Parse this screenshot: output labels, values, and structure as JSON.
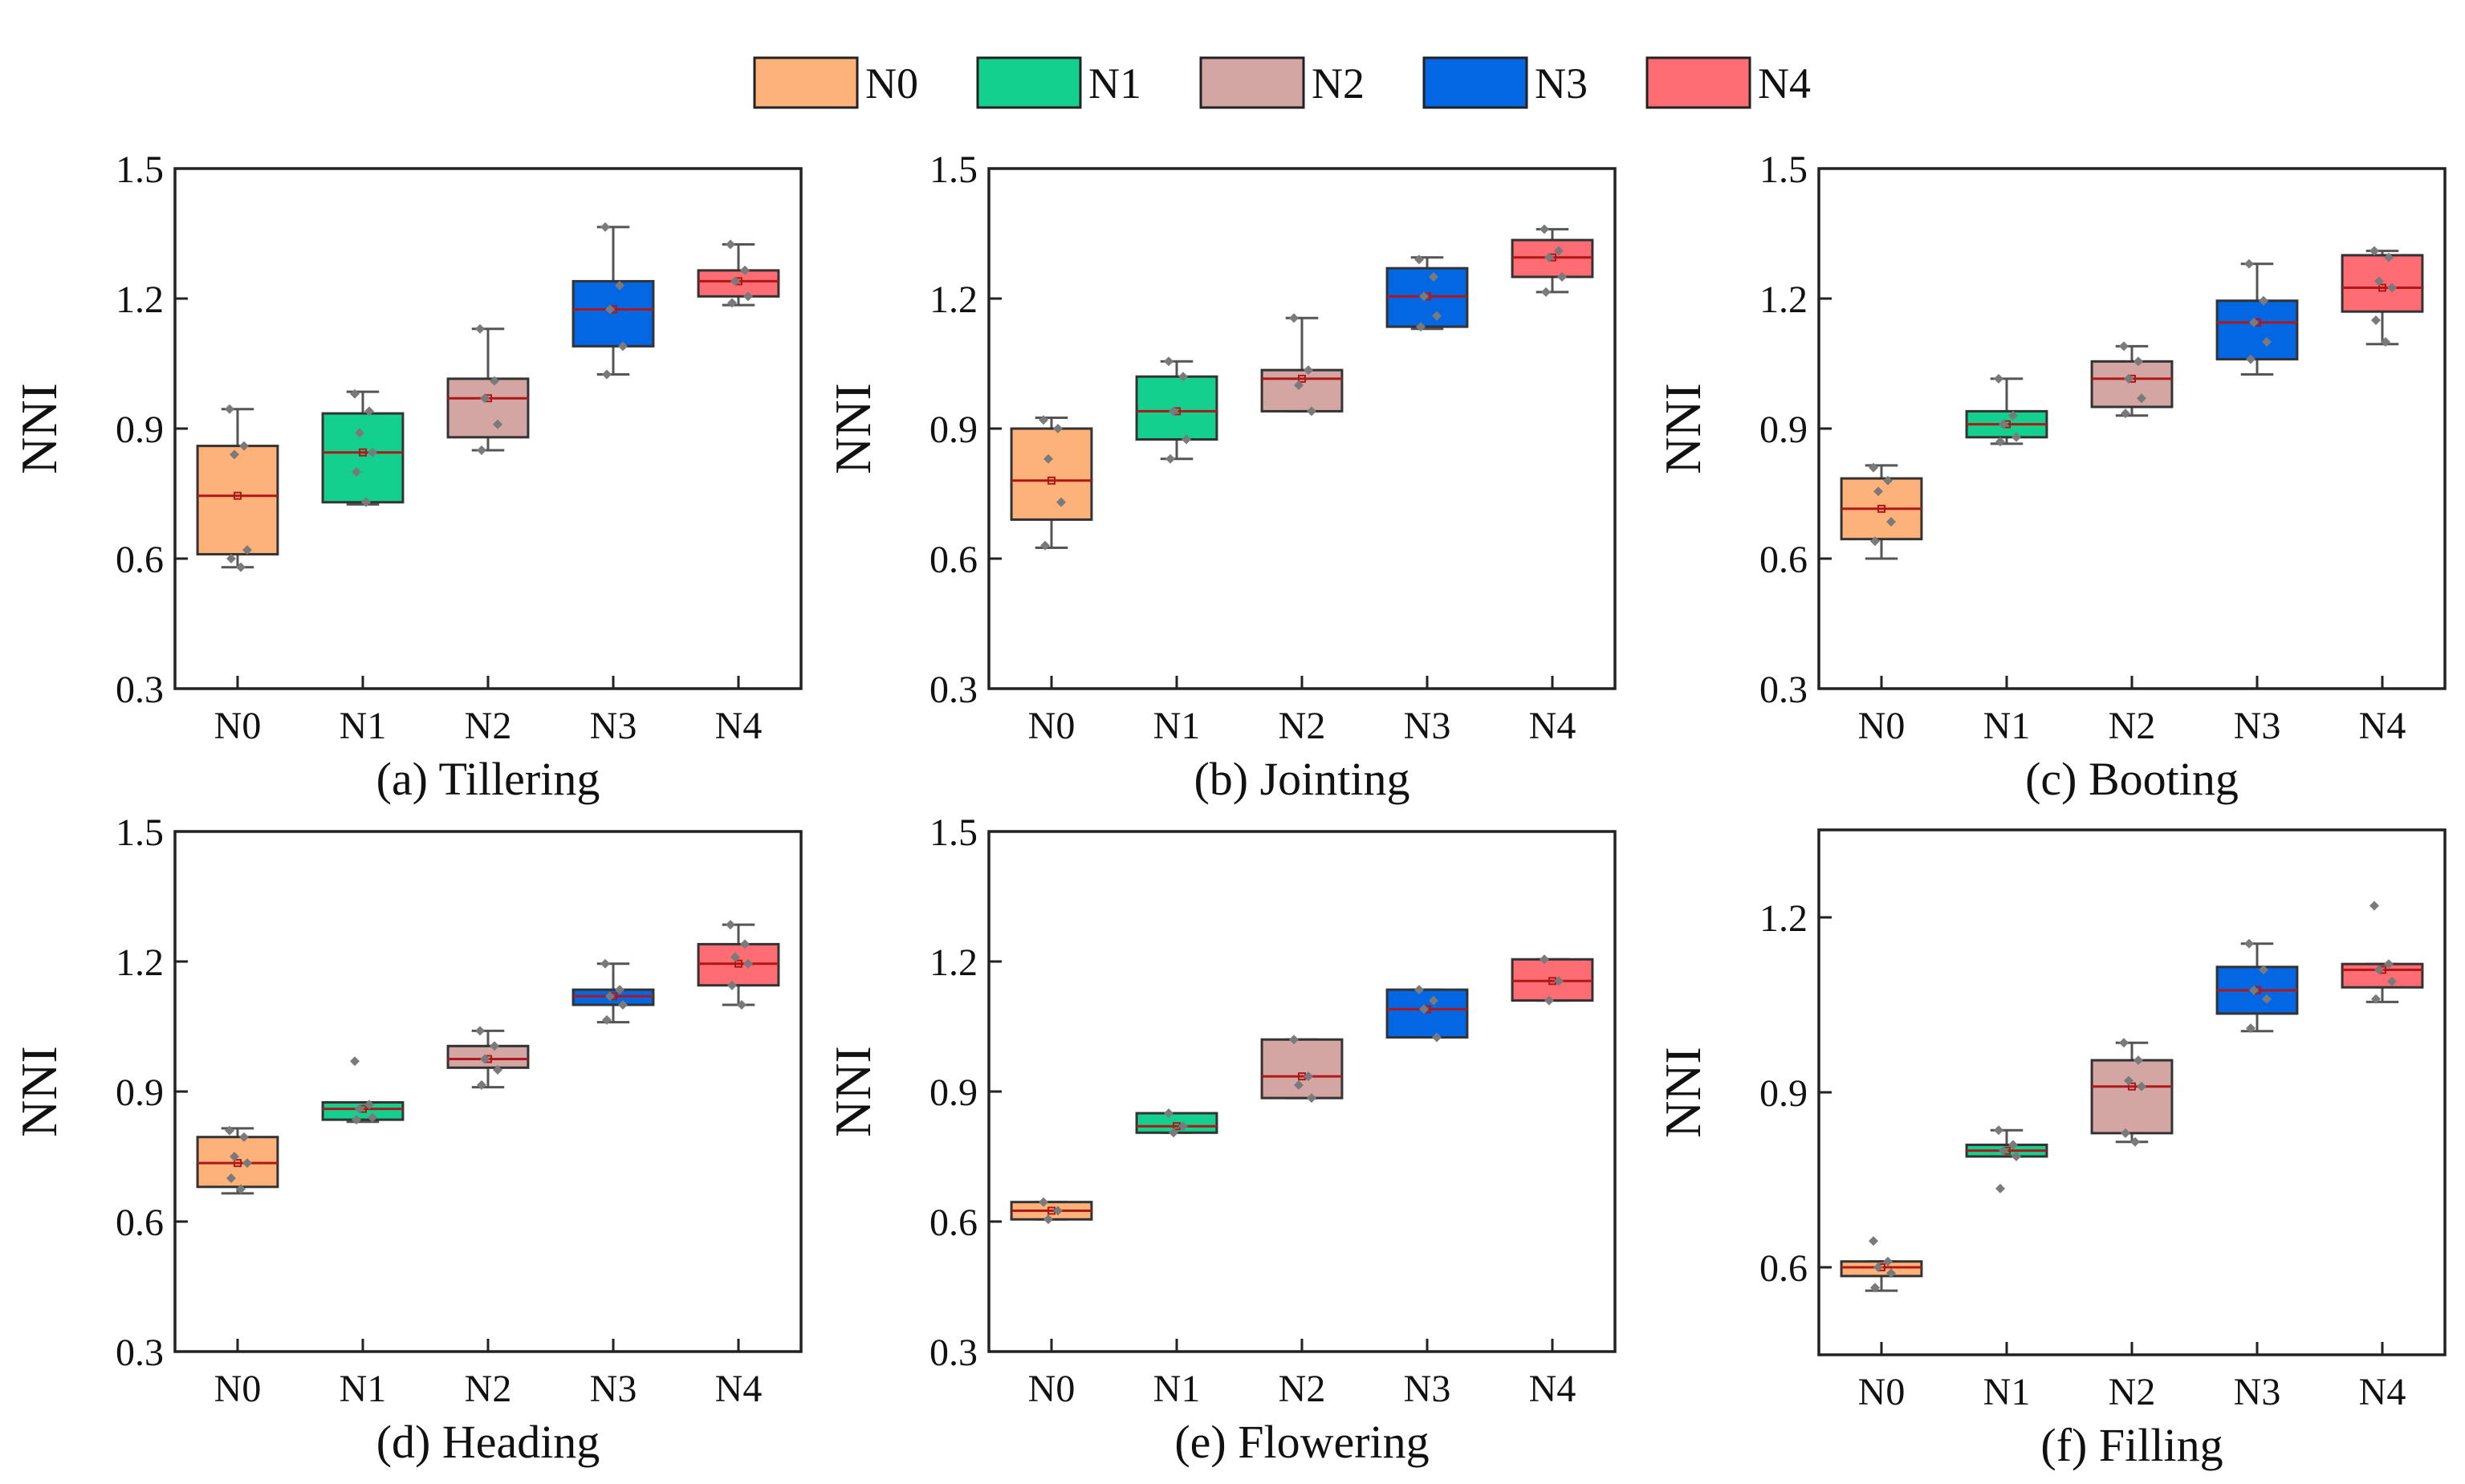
{
  "figure": {
    "legend": [
      {
        "label": "N0",
        "color": "#FDB27A"
      },
      {
        "label": "N1",
        "color": "#14D08E"
      },
      {
        "label": "N2",
        "color": "#D3A6A4"
      },
      {
        "label": "N3",
        "color": "#0366E2"
      },
      {
        "label": "N4",
        "color": "#FD6D73"
      }
    ]
  },
  "chart_data": [
    {
      "type": "box",
      "caption": "(a) Tillering",
      "ylabel": "NNI",
      "categories": [
        "N0",
        "N1",
        "N2",
        "N3",
        "N4"
      ],
      "ylim": [
        0.3,
        1.5
      ],
      "yticks": [
        0.3,
        0.6,
        0.9,
        1.2,
        1.5
      ],
      "ytick_labels": [
        "0.3",
        "0.6",
        "0.9",
        "1.2",
        "1.5"
      ],
      "boxes": [
        {
          "q1": 0.61,
          "median": 0.745,
          "q3": 0.86,
          "mean": 0.745,
          "whisker_low": 0.58,
          "whisker_high": 0.945,
          "points": [
            0.945,
            0.86,
            0.84,
            0.62,
            0.6,
            0.58
          ]
        },
        {
          "q1": 0.73,
          "median": 0.845,
          "q3": 0.935,
          "mean": 0.845,
          "whisker_low": 0.725,
          "whisker_high": 0.985,
          "points": [
            0.98,
            0.94,
            0.89,
            0.845,
            0.8,
            0.73
          ]
        },
        {
          "q1": 0.88,
          "median": 0.97,
          "q3": 1.015,
          "mean": 0.97,
          "whisker_low": 0.85,
          "whisker_high": 1.13,
          "points": [
            1.13,
            1.01,
            0.97,
            0.91,
            0.85
          ]
        },
        {
          "q1": 1.09,
          "median": 1.175,
          "q3": 1.24,
          "mean": 1.175,
          "whisker_low": 1.025,
          "whisker_high": 1.365,
          "points": [
            1.365,
            1.23,
            1.175,
            1.09,
            1.025
          ]
        },
        {
          "q1": 1.205,
          "median": 1.24,
          "q3": 1.265,
          "mean": 1.24,
          "whisker_low": 1.185,
          "whisker_high": 1.325,
          "points": [
            1.325,
            1.265,
            1.24,
            1.205,
            1.19
          ]
        }
      ]
    },
    {
      "type": "box",
      "caption": "(b) Jointing",
      "ylabel": "NNI",
      "categories": [
        "N0",
        "N1",
        "N2",
        "N3",
        "N4"
      ],
      "ylim": [
        0.3,
        1.5
      ],
      "yticks": [
        0.3,
        0.6,
        0.9,
        1.2,
        1.5
      ],
      "ytick_labels": [
        "0.3",
        "0.6",
        "0.9",
        "1.2",
        "1.5"
      ],
      "boxes": [
        {
          "q1": 0.69,
          "median": 0.78,
          "q3": 0.9,
          "mean": 0.78,
          "whisker_low": 0.625,
          "whisker_high": 0.925,
          "points": [
            0.92,
            0.9,
            0.83,
            0.73,
            0.63
          ]
        },
        {
          "q1": 0.875,
          "median": 0.94,
          "q3": 1.02,
          "mean": 0.94,
          "whisker_low": 0.83,
          "whisker_high": 1.055,
          "points": [
            1.055,
            1.02,
            0.94,
            0.875,
            0.83
          ]
        },
        {
          "q1": 0.94,
          "median": 1.015,
          "q3": 1.035,
          "mean": 1.015,
          "whisker_low": 0.94,
          "whisker_high": 1.155,
          "points": [
            1.155,
            1.035,
            1.0,
            0.94
          ]
        },
        {
          "q1": 1.135,
          "median": 1.205,
          "q3": 1.27,
          "mean": 1.205,
          "whisker_low": 1.13,
          "whisker_high": 1.295,
          "points": [
            1.29,
            1.25,
            1.205,
            1.16,
            1.135
          ]
        },
        {
          "q1": 1.25,
          "median": 1.295,
          "q3": 1.335,
          "mean": 1.295,
          "whisker_low": 1.215,
          "whisker_high": 1.36,
          "points": [
            1.36,
            1.31,
            1.295,
            1.25,
            1.215
          ]
        }
      ]
    },
    {
      "type": "box",
      "caption": "(c) Booting",
      "ylabel": "NNI",
      "categories": [
        "N0",
        "N1",
        "N2",
        "N3",
        "N4"
      ],
      "ylim": [
        0.3,
        1.5
      ],
      "yticks": [
        0.3,
        0.6,
        0.9,
        1.2,
        1.5
      ],
      "ytick_labels": [
        "0.3",
        "0.6",
        "0.9",
        "1.2",
        "1.5"
      ],
      "boxes": [
        {
          "q1": 0.645,
          "median": 0.715,
          "q3": 0.785,
          "mean": 0.715,
          "whisker_low": 0.6,
          "whisker_high": 0.815,
          "points": [
            0.81,
            0.78,
            0.755,
            0.685,
            0.64
          ]
        },
        {
          "q1": 0.88,
          "median": 0.91,
          "q3": 0.94,
          "mean": 0.91,
          "whisker_low": 0.865,
          "whisker_high": 1.015,
          "points": [
            1.015,
            0.93,
            0.91,
            0.88,
            0.87
          ]
        },
        {
          "q1": 0.95,
          "median": 1.015,
          "q3": 1.055,
          "mean": 1.015,
          "whisker_low": 0.93,
          "whisker_high": 1.09,
          "points": [
            1.09,
            1.055,
            1.015,
            0.97,
            0.935
          ]
        },
        {
          "q1": 1.06,
          "median": 1.145,
          "q3": 1.195,
          "mean": 1.145,
          "whisker_low": 1.025,
          "whisker_high": 1.28,
          "points": [
            1.28,
            1.195,
            1.145,
            1.1,
            1.06
          ]
        },
        {
          "q1": 1.17,
          "median": 1.225,
          "q3": 1.3,
          "mean": 1.225,
          "whisker_low": 1.095,
          "whisker_high": 1.31,
          "points": [
            1.31,
            1.295,
            1.24,
            1.225,
            1.15,
            1.1
          ]
        }
      ]
    },
    {
      "type": "box",
      "caption": "(d) Heading",
      "ylabel": "NNI",
      "categories": [
        "N0",
        "N1",
        "N2",
        "N3",
        "N4"
      ],
      "ylim": [
        0.3,
        1.5
      ],
      "yticks": [
        0.3,
        0.6,
        0.9,
        1.2,
        1.5
      ],
      "ytick_labels": [
        "0.3",
        "0.6",
        "0.9",
        "1.2",
        "1.5"
      ],
      "boxes": [
        {
          "q1": 0.68,
          "median": 0.735,
          "q3": 0.795,
          "mean": 0.735,
          "whisker_low": 0.665,
          "whisker_high": 0.815,
          "points": [
            0.81,
            0.795,
            0.75,
            0.735,
            0.7,
            0.675
          ]
        },
        {
          "q1": 0.835,
          "median": 0.86,
          "q3": 0.875,
          "mean": 0.86,
          "whisker_low": 0.83,
          "whisker_high": 0.875,
          "points": [
            0.97,
            0.87,
            0.86,
            0.84,
            0.835
          ]
        },
        {
          "q1": 0.955,
          "median": 0.975,
          "q3": 1.005,
          "mean": 0.975,
          "whisker_low": 0.91,
          "whisker_high": 1.04,
          "points": [
            1.04,
            1.005,
            0.975,
            0.95,
            0.915
          ]
        },
        {
          "q1": 1.1,
          "median": 1.12,
          "q3": 1.135,
          "mean": 1.12,
          "whisker_low": 1.06,
          "whisker_high": 1.195,
          "points": [
            1.195,
            1.135,
            1.12,
            1.1,
            1.065
          ]
        },
        {
          "q1": 1.145,
          "median": 1.195,
          "q3": 1.24,
          "mean": 1.195,
          "whisker_low": 1.1,
          "whisker_high": 1.285,
          "points": [
            1.285,
            1.24,
            1.21,
            1.195,
            1.145,
            1.1
          ]
        }
      ]
    },
    {
      "type": "box",
      "caption": "(e) Flowering",
      "ylabel": "NNI",
      "categories": [
        "N0",
        "N1",
        "N2",
        "N3",
        "N4"
      ],
      "ylim": [
        0.3,
        1.5
      ],
      "yticks": [
        0.3,
        0.6,
        0.9,
        1.2,
        1.5
      ],
      "ytick_labels": [
        "0.3",
        "0.6",
        "0.9",
        "1.2",
        "1.5"
      ],
      "boxes": [
        {
          "q1": 0.605,
          "median": 0.625,
          "q3": 0.645,
          "mean": 0.625,
          "whisker_low": 0.605,
          "whisker_high": 0.645,
          "points": [
            0.645,
            0.625,
            0.605
          ]
        },
        {
          "q1": 0.805,
          "median": 0.82,
          "q3": 0.85,
          "mean": 0.82,
          "whisker_low": 0.805,
          "whisker_high": 0.85,
          "points": [
            0.85,
            0.82,
            0.805
          ]
        },
        {
          "q1": 0.885,
          "median": 0.935,
          "q3": 1.02,
          "mean": 0.935,
          "whisker_low": 0.885,
          "whisker_high": 1.02,
          "points": [
            1.02,
            0.935,
            0.915,
            0.885
          ]
        },
        {
          "q1": 1.025,
          "median": 1.09,
          "q3": 1.135,
          "mean": 1.09,
          "whisker_low": 1.025,
          "whisker_high": 1.135,
          "points": [
            1.135,
            1.11,
            1.09,
            1.025
          ]
        },
        {
          "q1": 1.11,
          "median": 1.155,
          "q3": 1.205,
          "mean": 1.155,
          "whisker_low": 1.11,
          "whisker_high": 1.205,
          "points": [
            1.205,
            1.155,
            1.11
          ]
        }
      ]
    },
    {
      "type": "box",
      "caption": "(f) Filling",
      "ylabel": "NNI",
      "categories": [
        "N0",
        "N1",
        "N2",
        "N3",
        "N4"
      ],
      "ylim": [
        0.45,
        1.35
      ],
      "yticks": [
        0.6,
        0.9,
        1.2
      ],
      "ytick_labels": [
        "0.6",
        "0.9",
        "1.2"
      ],
      "boxes": [
        {
          "q1": 0.585,
          "median": 0.6,
          "q3": 0.61,
          "mean": 0.6,
          "whisker_low": 0.56,
          "whisker_high": 0.61,
          "points": [
            0.645,
            0.61,
            0.6,
            0.59,
            0.565
          ]
        },
        {
          "q1": 0.79,
          "median": 0.8,
          "q3": 0.81,
          "mean": 0.8,
          "whisker_low": 0.79,
          "whisker_high": 0.835,
          "points": [
            0.835,
            0.81,
            0.8,
            0.79,
            0.735
          ]
        },
        {
          "q1": 0.83,
          "median": 0.91,
          "q3": 0.955,
          "mean": 0.91,
          "whisker_low": 0.815,
          "whisker_high": 0.985,
          "points": [
            0.985,
            0.955,
            0.92,
            0.91,
            0.83,
            0.815
          ]
        },
        {
          "q1": 1.035,
          "median": 1.075,
          "q3": 1.115,
          "mean": 1.075,
          "whisker_low": 1.005,
          "whisker_high": 1.155,
          "points": [
            1.155,
            1.11,
            1.075,
            1.06,
            1.01
          ]
        },
        {
          "q1": 1.08,
          "median": 1.11,
          "q3": 1.12,
          "mean": 1.11,
          "whisker_low": 1.055,
          "whisker_high": 1.12,
          "points": [
            1.22,
            1.12,
            1.11,
            1.09,
            1.06
          ]
        }
      ]
    }
  ]
}
